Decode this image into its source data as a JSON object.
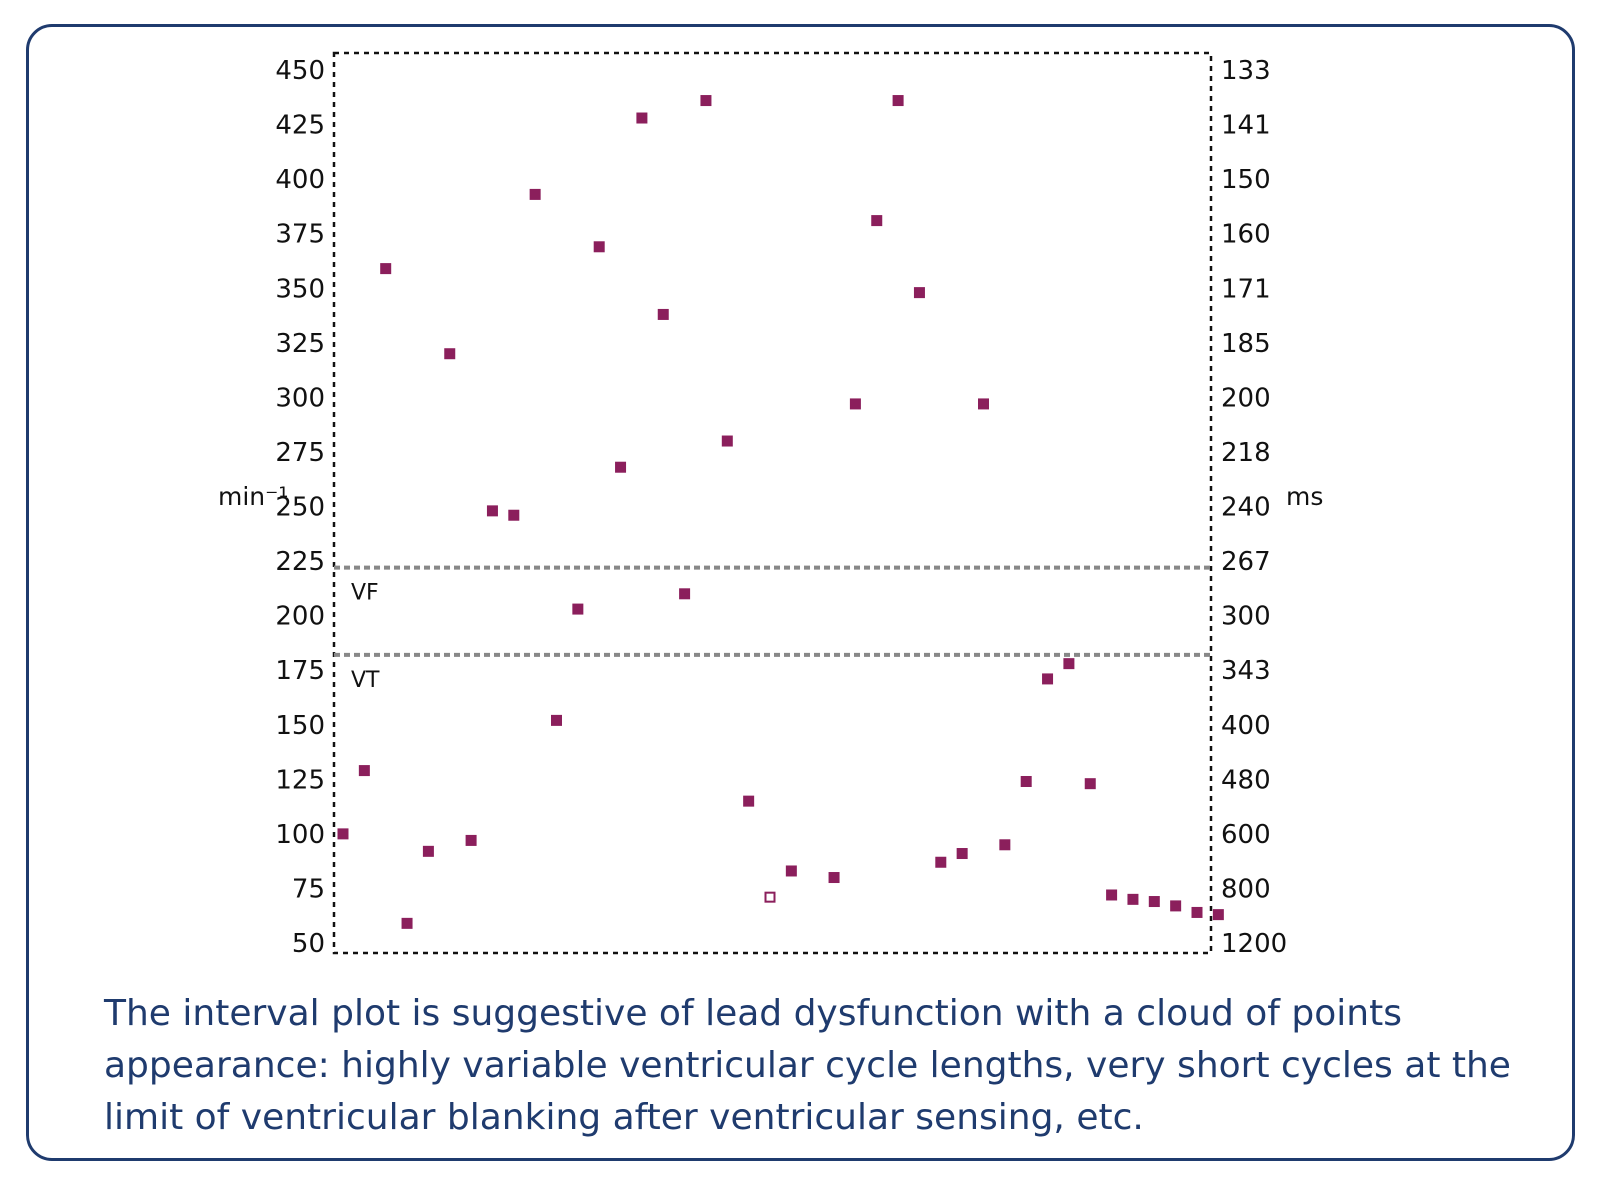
{
  "caption": "The interval plot is suggestive of lead dysfunction with a cloud of points appearance: highly variable ventricular cycle lengths, very short cycles at the limit of ventricular blanking after ventricular sensing, etc.",
  "chart_data": {
    "type": "scatter",
    "title": "",
    "xlabel": "",
    "ylabel": "min⁻¹",
    "ylabel_right": "ms",
    "ylim": [
      50,
      460
    ],
    "y_ticks": [
      450,
      425,
      400,
      375,
      350,
      325,
      300,
      275,
      250,
      225,
      200,
      175,
      150,
      125,
      100,
      75,
      50
    ],
    "y_ticks_right": [
      "133",
      "141",
      "150",
      "160",
      "171",
      "185",
      "200",
      "218",
      "240",
      "267",
      "300",
      "343",
      "400",
      "480",
      "600",
      "800",
      "1200"
    ],
    "xlim": [
      0.5,
      42
    ],
    "grid": false,
    "legend": "none",
    "zones": [
      {
        "label": "VF",
        "threshold": 222
      },
      {
        "label": "VT",
        "threshold": 182
      }
    ],
    "point_color": "#8b1f5c",
    "threshold_color": "#888888",
    "points": [
      {
        "x": 1,
        "y": 100,
        "filled": true
      },
      {
        "x": 2,
        "y": 129,
        "filled": true
      },
      {
        "x": 3,
        "y": 359,
        "filled": true
      },
      {
        "x": 4,
        "y": 59,
        "filled": true
      },
      {
        "x": 5,
        "y": 92,
        "filled": true
      },
      {
        "x": 6,
        "y": 320,
        "filled": true
      },
      {
        "x": 7,
        "y": 97,
        "filled": true
      },
      {
        "x": 8,
        "y": 248,
        "filled": true
      },
      {
        "x": 9,
        "y": 246,
        "filled": true
      },
      {
        "x": 10,
        "y": 393,
        "filled": true
      },
      {
        "x": 11,
        "y": 152,
        "filled": true
      },
      {
        "x": 12,
        "y": 203,
        "filled": true
      },
      {
        "x": 13,
        "y": 369,
        "filled": true
      },
      {
        "x": 14,
        "y": 268,
        "filled": true
      },
      {
        "x": 15,
        "y": 428,
        "filled": true
      },
      {
        "x": 16,
        "y": 338,
        "filled": true
      },
      {
        "x": 17,
        "y": 210,
        "filled": true
      },
      {
        "x": 18,
        "y": 436,
        "filled": true
      },
      {
        "x": 19,
        "y": 280,
        "filled": true
      },
      {
        "x": 20,
        "y": 115,
        "filled": true
      },
      {
        "x": 21,
        "y": 71,
        "filled": false
      },
      {
        "x": 22,
        "y": 83,
        "filled": true
      },
      {
        "x": 24,
        "y": 80,
        "filled": true
      },
      {
        "x": 25,
        "y": 297,
        "filled": true
      },
      {
        "x": 26,
        "y": 381,
        "filled": true
      },
      {
        "x": 27,
        "y": 436,
        "filled": true
      },
      {
        "x": 28,
        "y": 348,
        "filled": true
      },
      {
        "x": 29,
        "y": 87,
        "filled": true
      },
      {
        "x": 30,
        "y": 91,
        "filled": true
      },
      {
        "x": 31,
        "y": 297,
        "filled": true
      },
      {
        "x": 32,
        "y": 95,
        "filled": true
      },
      {
        "x": 33,
        "y": 124,
        "filled": true
      },
      {
        "x": 34,
        "y": 171,
        "filled": true
      },
      {
        "x": 35,
        "y": 178,
        "filled": true
      },
      {
        "x": 36,
        "y": 123,
        "filled": true
      },
      {
        "x": 37,
        "y": 72,
        "filled": true
      },
      {
        "x": 38,
        "y": 70,
        "filled": true
      },
      {
        "x": 39,
        "y": 69,
        "filled": true
      },
      {
        "x": 40,
        "y": 67,
        "filled": true
      },
      {
        "x": 41,
        "y": 64,
        "filled": true
      },
      {
        "x": 42,
        "y": 63,
        "filled": true
      }
    ]
  }
}
